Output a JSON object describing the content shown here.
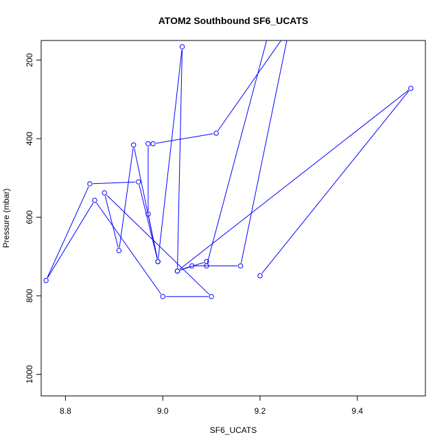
{
  "chart_data": {
    "type": "line",
    "title": "ATOM2 Southbound SF6_UCATS",
    "xlabel": "SF6_UCATS",
    "ylabel": "Pressure (mbar)",
    "xlim": [
      8.75,
      9.54
    ],
    "ylim": [
      1055,
      150
    ],
    "y_reversed": true,
    "grid": false,
    "x_ticks": [
      "8.8",
      "9.0",
      "9.2",
      "9.4"
    ],
    "y_ticks": [
      "200",
      "400",
      "600",
      "800",
      "1000"
    ],
    "marker": "open-circle",
    "series": [
      {
        "color": "#0000ff",
        "x": [
          9.2,
          9.51,
          9.03,
          9.06,
          9.16,
          9.26,
          9.11,
          8.98,
          8.97,
          8.97,
          8.99,
          8.95,
          8.85,
          8.76,
          8.86,
          9.0,
          9.1,
          8.88,
          8.91,
          8.94,
          8.99,
          9.04,
          9.03,
          9.09,
          9.09,
          9.22
        ],
        "y": [
          749,
          272,
          737,
          724,
          724,
          120,
          386,
          413,
          413,
          592,
          713,
          510,
          515,
          761,
          557,
          802,
          802,
          538,
          685,
          416,
          713,
          166,
          737,
          713,
          724,
          120
        ]
      }
    ]
  }
}
